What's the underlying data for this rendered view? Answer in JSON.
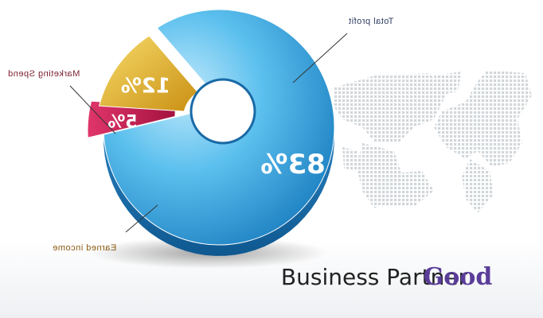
{
  "chart_data": {
    "type": "pie",
    "mirrored": true,
    "slices": [
      {
        "name": "Total profit",
        "label": "Total profit",
        "value": 83,
        "value_label": "83%",
        "color": "#4fb6e6"
      },
      {
        "name": "Earned income",
        "label": "Earned income",
        "value": 12,
        "value_label": "12%",
        "color": "#e2b322"
      },
      {
        "name": "Marketing Spend",
        "label": "Marketing Spend",
        "value": 5,
        "value_label": "5%",
        "color": "#c81a5a"
      }
    ],
    "label_colors": {
      "Total profit": "#2f3e63",
      "Earned income": "#8a5a10",
      "Marketing Spend": "#7a1f2e"
    }
  },
  "brand": {
    "good": "Good",
    "rest": "Business Partner",
    "good_color": "#5a3d99",
    "rest_color": "#222222"
  },
  "background": {
    "map_icon": "world-map-dots"
  }
}
